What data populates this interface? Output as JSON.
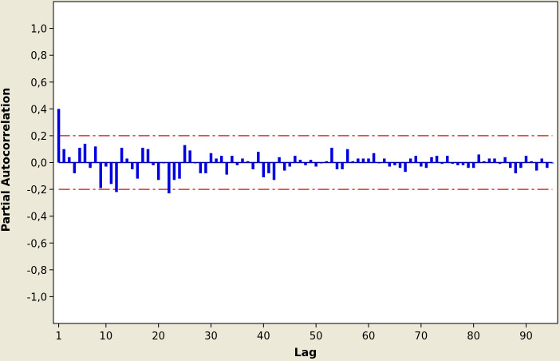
{
  "chart_data": {
    "type": "bar",
    "title": "",
    "xlabel": "Lag",
    "ylabel": "Partial Autocorrelation",
    "xlim": [
      0,
      96
    ],
    "ylim": [
      -1.2,
      1.2
    ],
    "x_ticks": [
      1,
      10,
      20,
      30,
      40,
      50,
      60,
      70,
      80,
      90
    ],
    "x_tick_labels": [
      "1",
      "10",
      "20",
      "30",
      "40",
      "50",
      "60",
      "70",
      "80",
      "90"
    ],
    "y_ticks": [
      1.0,
      0.8,
      0.6,
      0.4,
      0.2,
      0.0,
      -0.2,
      -0.4,
      -0.6,
      -0.8,
      -1.0
    ],
    "y_tick_labels": [
      "1,0",
      "0,8",
      "0,6",
      "0,4",
      "0,2",
      "0,0",
      "-0,2",
      "-0,4",
      "-0,6",
      "-0,8",
      "-1,0"
    ],
    "grid": false,
    "legend": "none",
    "confidence_limits": [
      0.2,
      -0.2
    ],
    "colors": {
      "bars": "#0000e0",
      "limits": "#e03030",
      "zero_line": "#0000a0",
      "background": "#ece9d8",
      "plot_background": "#ffffff"
    },
    "series": [
      {
        "x": [
          1,
          2,
          3,
          4,
          5,
          6,
          7,
          8,
          9,
          10,
          11,
          12,
          13,
          14,
          15,
          16,
          17,
          18,
          19,
          20,
          21,
          22,
          23,
          24,
          25,
          26,
          27,
          28,
          29,
          30,
          31,
          32,
          33,
          34,
          35,
          36,
          37,
          38,
          39,
          40,
          41,
          42,
          43,
          44,
          45,
          46,
          47,
          48,
          49,
          50,
          51,
          52,
          53,
          54,
          55,
          56,
          57,
          58,
          59,
          60,
          61,
          62,
          63,
          64,
          65,
          66,
          67,
          68,
          69,
          70,
          71,
          72,
          73,
          74,
          75,
          76,
          77,
          78,
          79,
          80,
          81,
          82,
          83,
          84,
          85,
          86,
          87,
          88,
          89,
          90,
          91,
          92,
          93,
          94,
          95
        ],
        "values": [
          0.4,
          0.1,
          0.04,
          -0.08,
          0.11,
          0.14,
          -0.04,
          0.12,
          -0.19,
          -0.03,
          -0.16,
          -0.22,
          0.11,
          0.03,
          -0.05,
          -0.12,
          0.11,
          0.1,
          -0.02,
          -0.13,
          0.0,
          -0.23,
          -0.13,
          -0.12,
          0.13,
          0.09,
          0.0,
          -0.08,
          -0.08,
          0.07,
          0.03,
          0.05,
          -0.09,
          0.05,
          -0.02,
          0.03,
          0.01,
          -0.05,
          0.08,
          -0.11,
          -0.08,
          -0.13,
          0.04,
          -0.06,
          -0.03,
          0.05,
          0.02,
          -0.02,
          0.02,
          -0.03,
          0.0,
          0.01,
          0.11,
          -0.05,
          -0.05,
          0.1,
          0.01,
          0.03,
          0.03,
          0.03,
          0.07,
          0.0,
          0.03,
          -0.03,
          -0.02,
          -0.04,
          -0.07,
          0.03,
          0.05,
          -0.03,
          -0.04,
          0.04,
          0.05,
          -0.01,
          0.05,
          -0.01,
          -0.02,
          -0.02,
          -0.04,
          -0.04,
          0.06,
          0.01,
          0.03,
          0.03,
          -0.01,
          0.04,
          -0.04,
          -0.08,
          -0.04,
          0.05,
          0.01,
          -0.06,
          0.03,
          -0.04,
          0.0
        ]
      }
    ]
  }
}
